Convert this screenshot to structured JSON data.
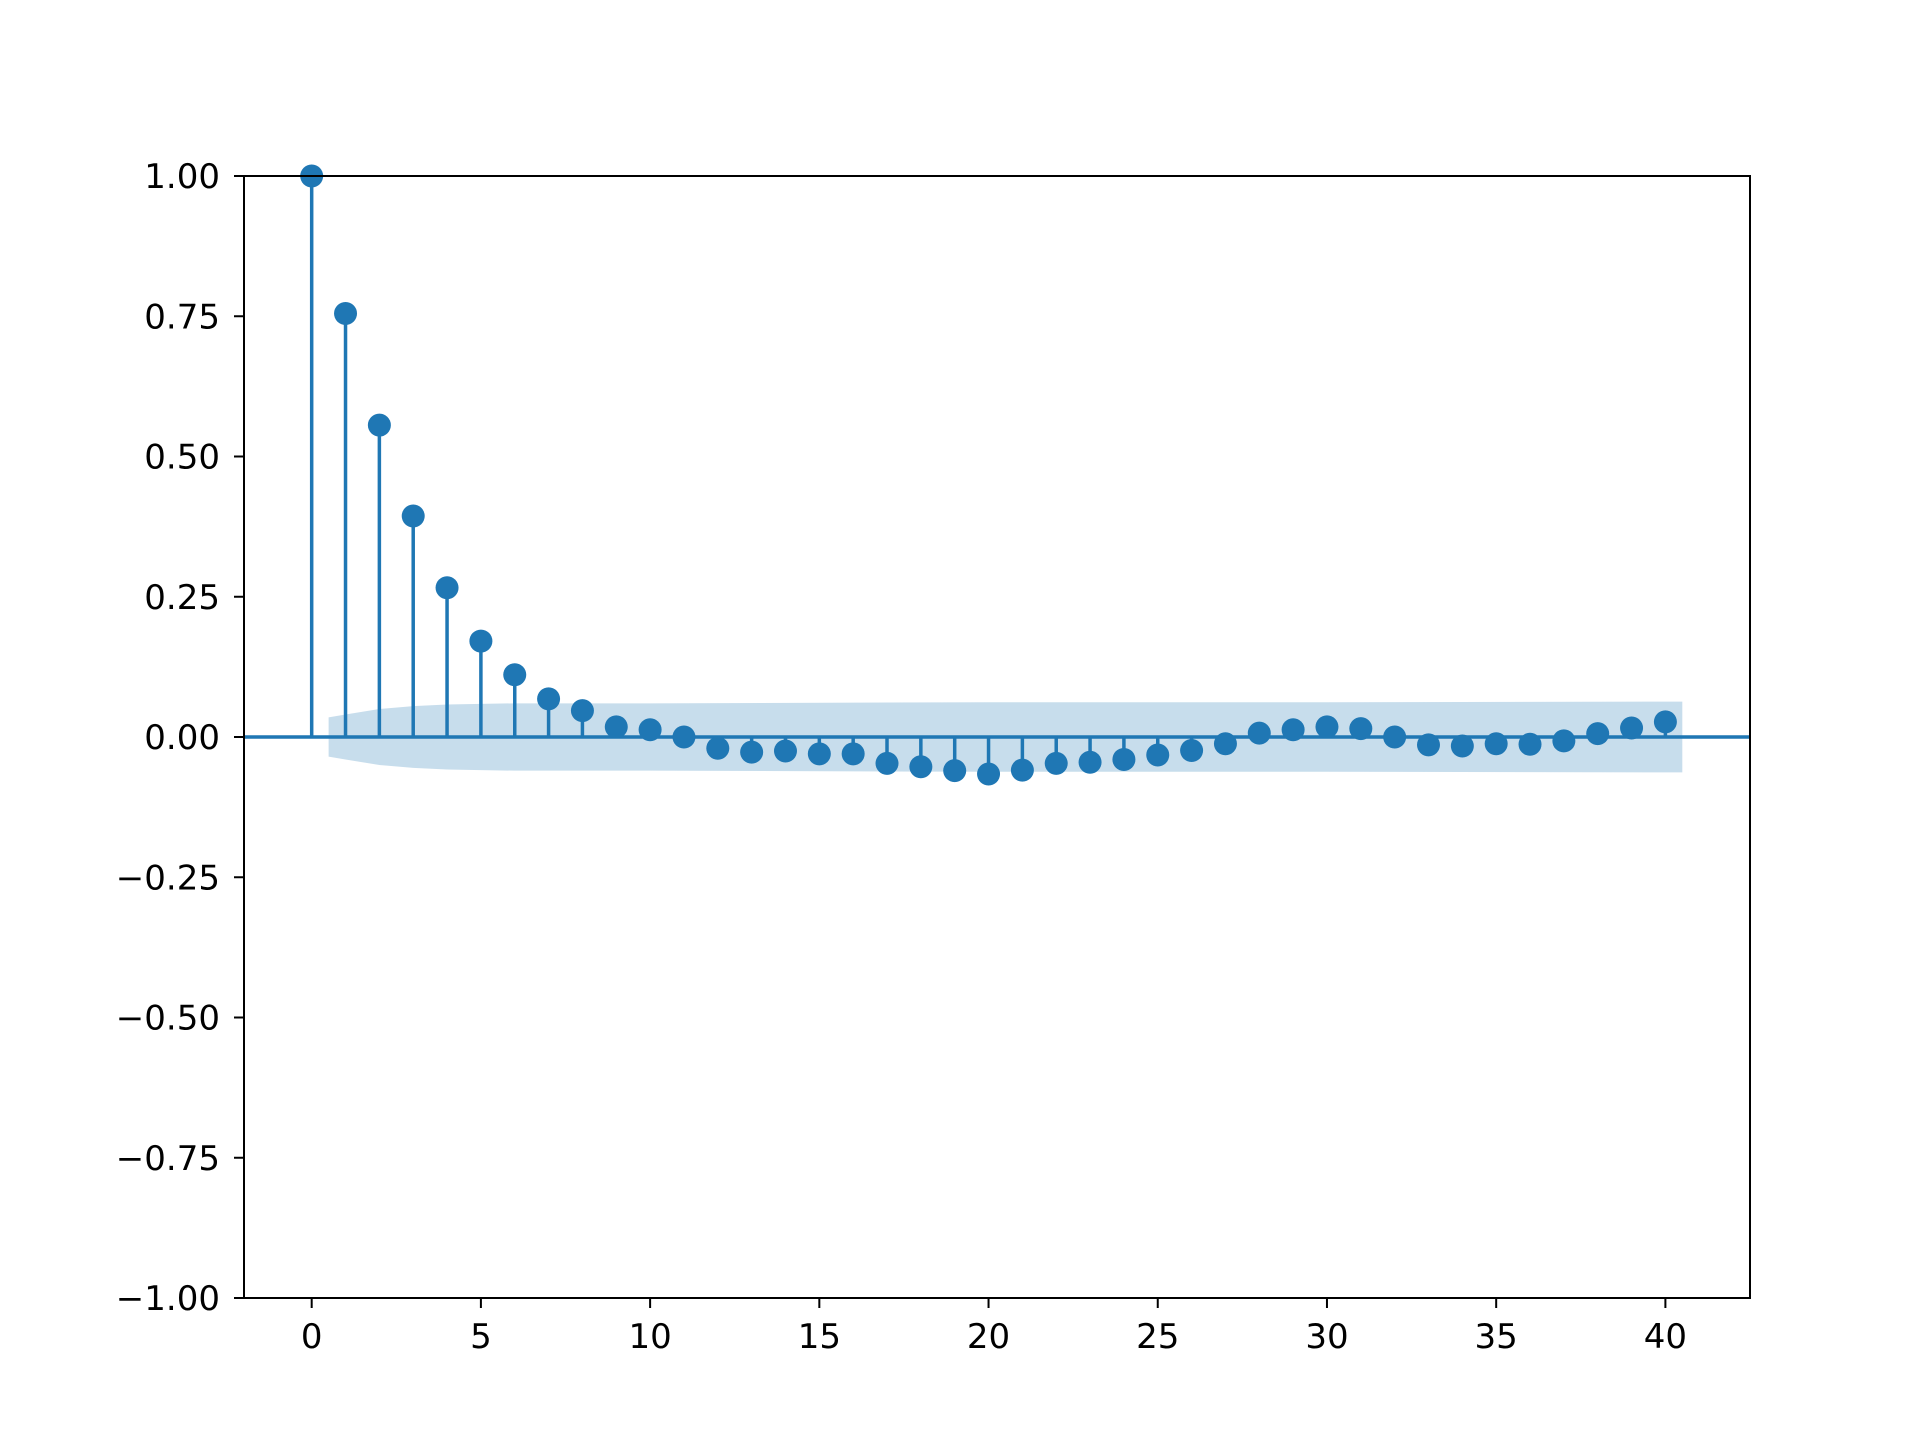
{
  "chart_data": {
    "type": "stem",
    "title": "",
    "xlabel": "",
    "ylabel": "",
    "xlim": [
      -2,
      42.5
    ],
    "ylim": [
      -1.0,
      1.0
    ],
    "x_ticks": [
      0,
      5,
      10,
      15,
      20,
      25,
      30,
      35,
      40
    ],
    "x_tick_labels": [
      "0",
      "5",
      "10",
      "15",
      "20",
      "25",
      "30",
      "35",
      "40"
    ],
    "y_ticks": [
      1.0,
      0.75,
      0.5,
      0.25,
      0.0,
      -0.25,
      -0.5,
      -0.75,
      -1.0
    ],
    "y_tick_labels": [
      "1.00",
      "0.75",
      "0.50",
      "0.25",
      "0.00",
      "−0.25",
      "−0.50",
      "−0.75",
      "−1.00"
    ],
    "grid": false,
    "colors": {
      "stem": "#1f77b4",
      "confidence_band": "#1f77b4"
    },
    "lags": [
      0,
      1,
      2,
      3,
      4,
      5,
      6,
      7,
      8,
      9,
      10,
      11,
      12,
      13,
      14,
      15,
      16,
      17,
      18,
      19,
      20,
      21,
      22,
      23,
      24,
      25,
      26,
      27,
      28,
      29,
      30,
      31,
      32,
      33,
      34,
      35,
      36,
      37,
      38,
      39,
      40
    ],
    "values": [
      1.0,
      0.755,
      0.556,
      0.394,
      0.266,
      0.171,
      0.111,
      0.068,
      0.047,
      0.018,
      0.013,
      0.0,
      -0.02,
      -0.027,
      -0.025,
      -0.03,
      -0.03,
      -0.047,
      -0.053,
      -0.06,
      -0.066,
      -0.059,
      -0.047,
      -0.045,
      -0.04,
      -0.032,
      -0.024,
      -0.012,
      0.007,
      0.013,
      0.018,
      0.015,
      0.0,
      -0.014,
      -0.016,
      -0.012,
      -0.013,
      -0.007,
      0.006,
      0.016,
      0.027
    ],
    "confidence_band": {
      "lags": [
        0.5,
        1,
        2,
        3,
        4,
        5,
        6,
        7,
        8,
        9,
        10,
        20,
        30,
        40,
        40.5
      ],
      "upper": [
        0.035,
        0.04,
        0.05,
        0.055,
        0.058,
        0.059,
        0.06,
        0.06,
        0.06,
        0.06,
        0.06,
        0.062,
        0.062,
        0.063,
        0.063
      ],
      "lower": [
        -0.035,
        -0.04,
        -0.05,
        -0.055,
        -0.058,
        -0.059,
        -0.06,
        -0.06,
        -0.06,
        -0.06,
        -0.06,
        -0.062,
        -0.062,
        -0.063,
        -0.063
      ]
    }
  }
}
